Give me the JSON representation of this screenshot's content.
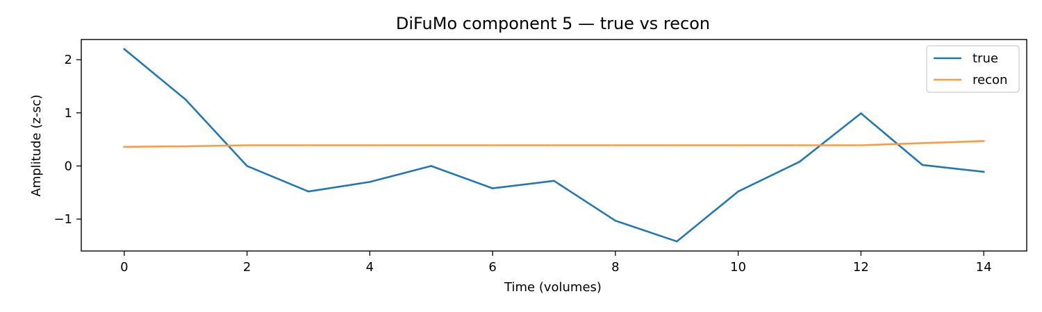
{
  "chart_data": {
    "type": "line",
    "title": "DiFuMo component 5 — true vs recon",
    "xlabel": "Time (volumes)",
    "ylabel": "Amplitude (z-sc)",
    "x": [
      0,
      1,
      2,
      3,
      4,
      5,
      6,
      7,
      8,
      9,
      10,
      11,
      12,
      13,
      14
    ],
    "xlim": [
      -0.7,
      14.7
    ],
    "ylim": [
      -1.6,
      2.38
    ],
    "xticks": [
      0,
      2,
      4,
      6,
      8,
      10,
      12,
      14
    ],
    "xtick_labels": [
      "0",
      "2",
      "4",
      "6",
      "8",
      "10",
      "12",
      "14"
    ],
    "yticks": [
      -1,
      0,
      1,
      2
    ],
    "ytick_labels": [
      "−1",
      "0",
      "1",
      "2"
    ],
    "grid": false,
    "legend_position": "top-right",
    "series": [
      {
        "name": "true",
        "color": "#1f77b4",
        "values": [
          2.2,
          1.25,
          0.0,
          -0.48,
          -0.3,
          0.0,
          -0.42,
          -0.28,
          -1.03,
          -1.42,
          -0.48,
          0.08,
          0.99,
          0.02,
          -0.11
        ]
      },
      {
        "name": "recon",
        "color": "#ff9a3c",
        "values": [
          0.36,
          0.37,
          0.39,
          0.39,
          0.39,
          0.39,
          0.39,
          0.39,
          0.39,
          0.39,
          0.39,
          0.39,
          0.39,
          0.43,
          0.47
        ]
      }
    ]
  }
}
